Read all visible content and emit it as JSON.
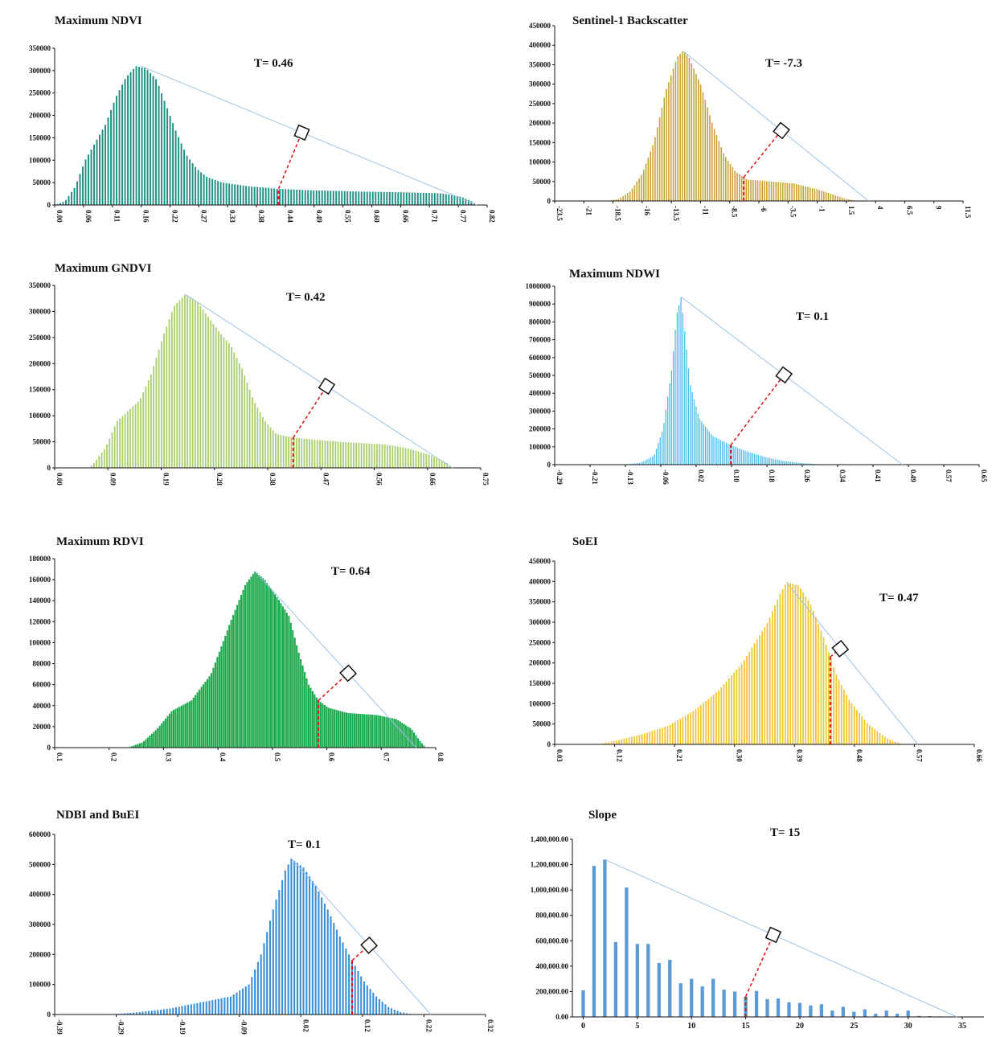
{
  "chart_data": [
    {
      "type": "bar",
      "title": "Maximum  NDVI",
      "threshold_label": "T= 0.46",
      "threshold": 0.46,
      "color": "#1f8f85",
      "xlim": [
        0.0,
        0.85
      ],
      "ylim": [
        0,
        350000
      ],
      "y_ticks": [
        "0",
        "50000",
        "100000",
        "150000",
        "200000",
        "250000",
        "300000",
        "350000"
      ],
      "x_ticks": [
        "0.00",
        "0.06",
        "0.11",
        "0.16",
        "0.22",
        "0.27",
        "0.33",
        "0.38",
        "0.44",
        "0.49",
        "0.55",
        "0.60",
        "0.66",
        "0.71",
        "0.77",
        "0.82"
      ],
      "x_tick_rotation": "vertical",
      "profile": [
        [
          0.0,
          0
        ],
        [
          0.02,
          8000
        ],
        [
          0.04,
          40000
        ],
        [
          0.06,
          100000
        ],
        [
          0.08,
          140000
        ],
        [
          0.1,
          180000
        ],
        [
          0.12,
          240000
        ],
        [
          0.14,
          285000
        ],
        [
          0.16,
          310000
        ],
        [
          0.18,
          305000
        ],
        [
          0.2,
          280000
        ],
        [
          0.22,
          220000
        ],
        [
          0.24,
          160000
        ],
        [
          0.26,
          110000
        ],
        [
          0.28,
          80000
        ],
        [
          0.3,
          62000
        ],
        [
          0.33,
          50000
        ],
        [
          0.38,
          42000
        ],
        [
          0.44,
          36000
        ],
        [
          0.5,
          33000
        ],
        [
          0.6,
          30000
        ],
        [
          0.7,
          28000
        ],
        [
          0.76,
          26000
        ],
        [
          0.8,
          18000
        ],
        [
          0.82,
          8000
        ],
        [
          0.83,
          0
        ]
      ],
      "bars": 150,
      "peak": [
        0.17,
        310000
      ],
      "tail": [
        0.83,
        0
      ],
      "perp_value": 0.44
    },
    {
      "type": "bar",
      "title": "Sentinel-1  Backscatter",
      "threshold_label": "T= -7.3",
      "threshold": -7.3,
      "color": "#c9a131",
      "xlim": [
        -23.5,
        11.5
      ],
      "ylim": [
        0,
        450000
      ],
      "y_ticks": [
        "0",
        "50000",
        "100000",
        "150000",
        "200000",
        "250000",
        "300000",
        "350000",
        "400000",
        "450000"
      ],
      "x_ticks": [
        "-23.5",
        "-21",
        "-18.5",
        "-16",
        "-13.5",
        "-11",
        "-8.5",
        "-6",
        "-3.5",
        "-1",
        "1.5",
        "4",
        "6.5",
        "9",
        "11.5"
      ],
      "x_tick_rotation": "vertical",
      "profile": [
        [
          -19,
          0
        ],
        [
          -18,
          5000
        ],
        [
          -17,
          25000
        ],
        [
          -16,
          70000
        ],
        [
          -15,
          150000
        ],
        [
          -14,
          280000
        ],
        [
          -13,
          370000
        ],
        [
          -12.5,
          385000
        ],
        [
          -12,
          370000
        ],
        [
          -11,
          300000
        ],
        [
          -10,
          200000
        ],
        [
          -9,
          120000
        ],
        [
          -8,
          75000
        ],
        [
          -7,
          55000
        ],
        [
          -5,
          50000
        ],
        [
          -3,
          45000
        ],
        [
          -1,
          30000
        ],
        [
          0.5,
          15000
        ],
        [
          1.5,
          5000
        ],
        [
          2.5,
          0
        ]
      ],
      "bars": 110,
      "peak": [
        -12.5,
        385000
      ],
      "tail": [
        3.4,
        0
      ],
      "perp_value": -7.3
    },
    {
      "type": "bar",
      "title": "Maximum  GNDVI",
      "threshold_label": "T= 0.42",
      "threshold": 0.42,
      "color": "#a8cd6d",
      "xlim": [
        0.0,
        0.75
      ],
      "ylim": [
        0,
        350000
      ],
      "y_ticks": [
        "0",
        "50000",
        "100000",
        "150000",
        "200000",
        "250000",
        "300000",
        "350000"
      ],
      "x_ticks": [
        "0.00",
        "0.09",
        "0.19",
        "0.28",
        "0.38",
        "0.47",
        "0.56",
        "0.66",
        "0.75"
      ],
      "x_tick_rotation": "vertical",
      "profile": [
        [
          0.06,
          0
        ],
        [
          0.07,
          10000
        ],
        [
          0.09,
          40000
        ],
        [
          0.11,
          90000
        ],
        [
          0.13,
          110000
        ],
        [
          0.15,
          130000
        ],
        [
          0.17,
          180000
        ],
        [
          0.19,
          250000
        ],
        [
          0.21,
          310000
        ],
        [
          0.23,
          333000
        ],
        [
          0.25,
          320000
        ],
        [
          0.27,
          290000
        ],
        [
          0.29,
          260000
        ],
        [
          0.31,
          235000
        ],
        [
          0.33,
          190000
        ],
        [
          0.35,
          130000
        ],
        [
          0.37,
          90000
        ],
        [
          0.39,
          65000
        ],
        [
          0.42,
          58000
        ],
        [
          0.5,
          50000
        ],
        [
          0.58,
          45000
        ],
        [
          0.62,
          38000
        ],
        [
          0.66,
          25000
        ],
        [
          0.69,
          10000
        ],
        [
          0.7,
          0
        ]
      ],
      "bars": 140,
      "peak": [
        0.23,
        333000
      ],
      "tail": [
        0.7,
        0
      ],
      "perp_value": 0.42
    },
    {
      "type": "bar",
      "title": "Maximum  NDWI",
      "threshold_label": "T= 0.1",
      "threshold": 0.1,
      "color": "#4cbce8",
      "xlim": [
        -0.29,
        0.65
      ],
      "ylim": [
        0,
        1000000
      ],
      "y_ticks": [
        "0",
        "100000",
        "200000",
        "300000",
        "400000",
        "500000",
        "600000",
        "700000",
        "800000",
        "900000",
        "1000000"
      ],
      "x_ticks": [
        "-0.29",
        "-0.21",
        "-0.13",
        "-0.06",
        "0.02",
        "0.10",
        "0.18",
        "0.26",
        "0.34",
        "0.41",
        "0.49",
        "0.57",
        "0.65"
      ],
      "x_tick_rotation": "vertical",
      "profile": [
        [
          -0.14,
          0
        ],
        [
          -0.1,
          10000
        ],
        [
          -0.07,
          50000
        ],
        [
          -0.05,
          200000
        ],
        [
          -0.03,
          550000
        ],
        [
          -0.02,
          840000
        ],
        [
          -0.01,
          940000
        ],
        [
          0.0,
          700000
        ],
        [
          0.01,
          450000
        ],
        [
          0.03,
          260000
        ],
        [
          0.06,
          160000
        ],
        [
          0.1,
          110000
        ],
        [
          0.14,
          70000
        ],
        [
          0.18,
          40000
        ],
        [
          0.22,
          20000
        ],
        [
          0.26,
          8000
        ],
        [
          0.3,
          2000
        ],
        [
          0.32,
          0
        ]
      ],
      "bars": 110,
      "peak": [
        -0.01,
        940000
      ],
      "tail": [
        0.48,
        0
      ],
      "perp_value": 0.1
    },
    {
      "type": "bar",
      "title": "Maximum  RDVI",
      "threshold_label": "T= 0.64",
      "threshold": 0.64,
      "color": "#1aaa4c",
      "xlim": [
        0.1,
        0.88
      ],
      "ylim": [
        0,
        180000
      ],
      "y_ticks": [
        "0",
        "20000",
        "40000",
        "60000",
        "80000",
        "100000",
        "120000",
        "140000",
        "160000",
        "180000"
      ],
      "x_ticks": [
        "0.1",
        "0.2",
        "0.3",
        "0.4",
        "0.5",
        "0.6",
        "0.7",
        "0.8"
      ],
      "x_tick_rotation": "vertical",
      "profile": [
        [
          0.25,
          0
        ],
        [
          0.28,
          5000
        ],
        [
          0.31,
          18000
        ],
        [
          0.34,
          35000
        ],
        [
          0.38,
          45000
        ],
        [
          0.42,
          70000
        ],
        [
          0.46,
          120000
        ],
        [
          0.49,
          155000
        ],
        [
          0.51,
          168000
        ],
        [
          0.53,
          160000
        ],
        [
          0.56,
          140000
        ],
        [
          0.58,
          125000
        ],
        [
          0.6,
          90000
        ],
        [
          0.62,
          60000
        ],
        [
          0.64,
          45000
        ],
        [
          0.66,
          38000
        ],
        [
          0.7,
          33000
        ],
        [
          0.76,
          31000
        ],
        [
          0.8,
          27000
        ],
        [
          0.83,
          18000
        ],
        [
          0.85,
          5000
        ],
        [
          0.86,
          0
        ]
      ],
      "fill": true,
      "bars": 150,
      "peak": [
        0.51,
        168000
      ],
      "tail": [
        0.84,
        0
      ],
      "perp_value": 0.64
    },
    {
      "type": "bar",
      "title": "SoEI",
      "threshold_label": "T= 0.47",
      "threshold": 0.47,
      "color": "#efc531",
      "xlim": [
        0.03,
        0.7
      ],
      "ylim": [
        0,
        450000
      ],
      "y_ticks": [
        "0",
        "50000",
        "100000",
        "150000",
        "200000",
        "250000",
        "300000",
        "350000",
        "400000",
        "450000"
      ],
      "x_ticks": [
        "0.03",
        "0.12",
        "0.21",
        "0.30",
        "0.39",
        "0.48",
        "0.57",
        "0.66"
      ],
      "x_tick_rotation": "vertical",
      "profile": [
        [
          0.1,
          0
        ],
        [
          0.13,
          10000
        ],
        [
          0.17,
          25000
        ],
        [
          0.21,
          45000
        ],
        [
          0.25,
          80000
        ],
        [
          0.29,
          130000
        ],
        [
          0.33,
          200000
        ],
        [
          0.37,
          300000
        ],
        [
          0.39,
          370000
        ],
        [
          0.4,
          398000
        ],
        [
          0.42,
          390000
        ],
        [
          0.44,
          340000
        ],
        [
          0.46,
          260000
        ],
        [
          0.48,
          170000
        ],
        [
          0.5,
          110000
        ],
        [
          0.53,
          50000
        ],
        [
          0.56,
          15000
        ],
        [
          0.58,
          3000
        ],
        [
          0.59,
          0
        ]
      ],
      "bars": 120,
      "peak": [
        0.4,
        398000
      ],
      "tail": [
        0.61,
        0
      ],
      "perp_value": 0.47
    },
    {
      "type": "bar",
      "title": "NDBI and BuEI",
      "threshold_label": "T= 0.1",
      "threshold": 0.1,
      "color": "#3a8fd6",
      "xlim": [
        -0.39,
        0.32
      ],
      "ylim": [
        0,
        600000
      ],
      "y_ticks": [
        "0",
        "100000",
        "200000",
        "300000",
        "400000",
        "500000",
        "600000"
      ],
      "x_ticks": [
        "-0.39",
        "-0.29",
        "-0.19",
        "-0.09",
        "0.02",
        "0.12",
        "0.22",
        "0.32"
      ],
      "x_tick_rotation": "vertical",
      "profile": [
        [
          -0.3,
          0
        ],
        [
          -0.25,
          8000
        ],
        [
          -0.2,
          20000
        ],
        [
          -0.15,
          40000
        ],
        [
          -0.1,
          60000
        ],
        [
          -0.07,
          100000
        ],
        [
          -0.05,
          200000
        ],
        [
          -0.03,
          350000
        ],
        [
          -0.01,
          480000
        ],
        [
          0.0,
          520000
        ],
        [
          0.02,
          490000
        ],
        [
          0.04,
          430000
        ],
        [
          0.06,
          350000
        ],
        [
          0.08,
          260000
        ],
        [
          0.1,
          180000
        ],
        [
          0.12,
          110000
        ],
        [
          0.14,
          60000
        ],
        [
          0.16,
          25000
        ],
        [
          0.18,
          8000
        ],
        [
          0.2,
          0
        ]
      ],
      "bars": 100,
      "peak": [
        0.0,
        520000
      ],
      "tail": [
        0.23,
        0
      ],
      "perp_value": 0.1
    },
    {
      "type": "bar",
      "title": "Slope",
      "threshold_label": "T= 15",
      "threshold": 15,
      "color": "#5b9bd5",
      "xlim": [
        -1,
        37
      ],
      "ylim": [
        0,
        1400000
      ],
      "y_ticks": [
        "0.00",
        "200,000.00",
        "400,000.00",
        "600,000.00",
        "800,000.00",
        "1,000,000.00",
        "1,200,000.00",
        "1,400,000.00"
      ],
      "x_ticks": [
        "0",
        "5",
        "10",
        "15",
        "20",
        "25",
        "30",
        "35"
      ],
      "x_tick_values": [
        0,
        5,
        10,
        15,
        20,
        25,
        30,
        35
      ],
      "x_tick_rotation": "horizontal",
      "discrete_bars": [
        [
          0,
          210000
        ],
        [
          1,
          1190000
        ],
        [
          2,
          1240000
        ],
        [
          3,
          590000
        ],
        [
          4,
          1020000
        ],
        [
          5,
          575000
        ],
        [
          6,
          575000
        ],
        [
          7,
          425000
        ],
        [
          8,
          450000
        ],
        [
          9,
          265000
        ],
        [
          10,
          300000
        ],
        [
          11,
          240000
        ],
        [
          12,
          300000
        ],
        [
          13,
          215000
        ],
        [
          14,
          200000
        ],
        [
          15,
          160000
        ],
        [
          16,
          205000
        ],
        [
          17,
          140000
        ],
        [
          18,
          145000
        ],
        [
          19,
          115000
        ],
        [
          20,
          110000
        ],
        [
          21,
          90000
        ],
        [
          22,
          100000
        ],
        [
          23,
          50000
        ],
        [
          24,
          80000
        ],
        [
          25,
          40000
        ],
        [
          26,
          60000
        ],
        [
          27,
          25000
        ],
        [
          28,
          50000
        ],
        [
          29,
          25000
        ],
        [
          30,
          50000
        ],
        [
          31,
          8000
        ],
        [
          32,
          6000
        ],
        [
          33,
          4000
        ],
        [
          34,
          3000
        ],
        [
          35,
          2000
        ],
        [
          36,
          1000
        ]
      ],
      "peak": [
        2,
        1240000
      ],
      "tail": [
        34.5,
        0
      ],
      "perp_value": 15
    }
  ]
}
